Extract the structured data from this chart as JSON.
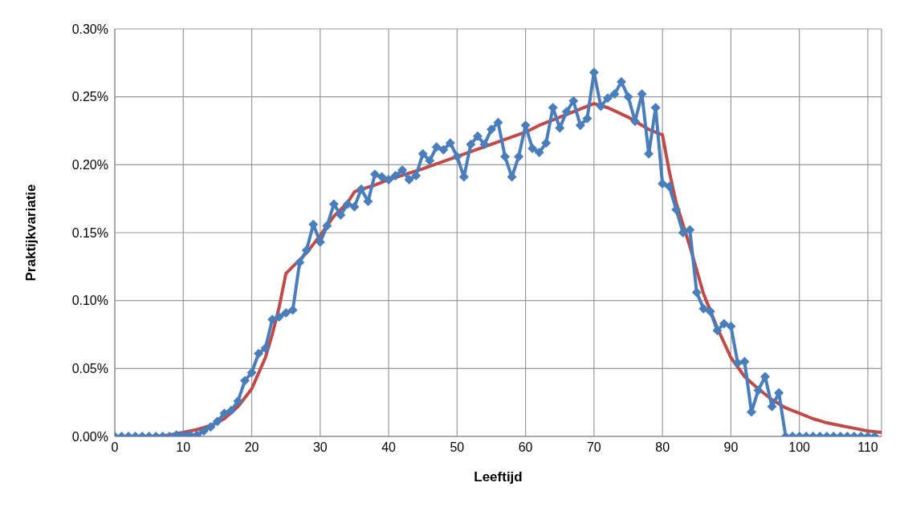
{
  "chart_data": {
    "type": "line",
    "xlabel": "Leeftijd",
    "ylabel": "Praktijkvariatie",
    "xlim": [
      0,
      112
    ],
    "xticks": [
      0,
      10,
      20,
      30,
      40,
      50,
      60,
      70,
      80,
      90,
      100,
      110
    ],
    "ylim": [
      0,
      0.3
    ],
    "yticks": [
      {
        "value": 0,
        "label": "0.00%"
      },
      {
        "value": 0.05,
        "label": "0.05%"
      },
      {
        "value": 0.1,
        "label": "0.10%"
      },
      {
        "value": 0.15,
        "label": "0.15%"
      },
      {
        "value": 0.2,
        "label": "0.20%"
      },
      {
        "value": 0.25,
        "label": "0.25%"
      },
      {
        "value": 0.3,
        "label": "0.30%"
      }
    ],
    "grid": true,
    "legend": false,
    "series": [
      {
        "color": "#be4b48",
        "marker": "none",
        "x": [
          4,
          6,
          8,
          10,
          12,
          14,
          16,
          18,
          20,
          22,
          23,
          24,
          25,
          26,
          28,
          30,
          32,
          34,
          35,
          36,
          38,
          40,
          45,
          50,
          55,
          60,
          62,
          65,
          68,
          70,
          72,
          75,
          78,
          80,
          81,
          82,
          84,
          86,
          88,
          90,
          92,
          94,
          96,
          98,
          100,
          102,
          104,
          106,
          108,
          110,
          112
        ],
        "values": [
          0,
          0,
          0.001,
          0.003,
          0.005,
          0.008,
          0.013,
          0.022,
          0.035,
          0.058,
          0.075,
          0.095,
          0.12,
          0.125,
          0.135,
          0.148,
          0.162,
          0.172,
          0.18,
          0.182,
          0.185,
          0.189,
          0.197,
          0.206,
          0.215,
          0.224,
          0.229,
          0.235,
          0.241,
          0.245,
          0.242,
          0.235,
          0.226,
          0.222,
          0.195,
          0.172,
          0.14,
          0.105,
          0.08,
          0.058,
          0.044,
          0.035,
          0.027,
          0.021,
          0.017,
          0.013,
          0.01,
          0.008,
          0.006,
          0.004,
          0.003
        ]
      },
      {
        "color": "#4a7ebb",
        "marker": "diamond",
        "x": [
          0,
          1,
          2,
          3,
          4,
          5,
          6,
          7,
          8,
          9,
          10,
          11,
          12,
          13,
          14,
          15,
          16,
          17,
          18,
          19,
          20,
          21,
          22,
          23,
          24,
          25,
          26,
          27,
          28,
          29,
          30,
          31,
          32,
          33,
          34,
          35,
          36,
          37,
          38,
          39,
          40,
          41,
          42,
          43,
          44,
          45,
          46,
          47,
          48,
          49,
          50,
          51,
          52,
          53,
          54,
          55,
          56,
          57,
          58,
          59,
          60,
          61,
          62,
          63,
          64,
          65,
          66,
          67,
          68,
          69,
          70,
          71,
          72,
          73,
          74,
          75,
          76,
          77,
          78,
          79,
          80,
          81,
          82,
          83,
          84,
          85,
          86,
          87,
          88,
          89,
          90,
          91,
          92,
          93,
          94,
          95,
          96,
          97,
          98,
          99,
          100,
          101,
          102,
          103,
          104,
          105,
          106,
          107,
          108,
          109,
          110,
          111
        ],
        "values": [
          0,
          0,
          0,
          0,
          0,
          0,
          0,
          0,
          0,
          0.001,
          0.001,
          0.001,
          0.001,
          0.004,
          0.007,
          0.011,
          0.017,
          0.019,
          0.026,
          0.041,
          0.047,
          0.061,
          0.065,
          0.086,
          0.088,
          0.091,
          0.093,
          0.128,
          0.137,
          0.156,
          0.143,
          0.155,
          0.171,
          0.163,
          0.171,
          0.169,
          0.182,
          0.173,
          0.193,
          0.191,
          0.189,
          0.192,
          0.196,
          0.189,
          0.192,
          0.208,
          0.203,
          0.213,
          0.211,
          0.216,
          0.206,
          0.191,
          0.215,
          0.221,
          0.215,
          0.226,
          0.231,
          0.206,
          0.191,
          0.206,
          0.229,
          0.212,
          0.209,
          0.216,
          0.242,
          0.227,
          0.239,
          0.247,
          0.229,
          0.234,
          0.268,
          0.243,
          0.249,
          0.252,
          0.261,
          0.25,
          0.232,
          0.252,
          0.208,
          0.242,
          0.186,
          0.184,
          0.167,
          0.15,
          0.152,
          0.106,
          0.094,
          0.092,
          0.078,
          0.083,
          0.081,
          0.054,
          0.055,
          0.018,
          0.034,
          0.044,
          0.022,
          0.032,
          0,
          0,
          0,
          0,
          0,
          0,
          0,
          0,
          0,
          0,
          0,
          0,
          0,
          0
        ]
      }
    ]
  }
}
